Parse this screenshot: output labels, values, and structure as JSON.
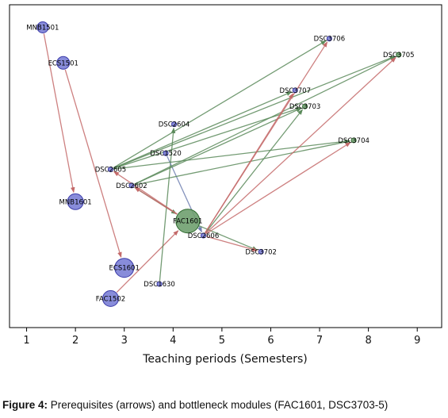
{
  "chart_data": {
    "type": "scatter",
    "xlabel": "Teaching periods (Semesters)",
    "xlim": [
      0.65,
      9.5
    ],
    "ylim": [
      0,
      10
    ],
    "xticks": [
      1,
      2,
      3,
      4,
      5,
      6,
      7,
      8,
      9
    ],
    "grid": false,
    "nodes": [
      {
        "id": "MNB1501",
        "x": 1.33,
        "y": 9.3,
        "size": 7,
        "group": "blue"
      },
      {
        "id": "ECS1501",
        "x": 1.75,
        "y": 8.2,
        "size": 8,
        "group": "blue"
      },
      {
        "id": "MNB1601",
        "x": 2.0,
        "y": 3.9,
        "size": 10,
        "group": "blue"
      },
      {
        "id": "ECS1601",
        "x": 3.0,
        "y": 1.85,
        "size": 12,
        "group": "blue"
      },
      {
        "id": "FAC1502",
        "x": 2.72,
        "y": 0.9,
        "size": 10,
        "group": "blue"
      },
      {
        "id": "FAC1601",
        "x": 4.3,
        "y": 3.3,
        "size": 15,
        "group": "green"
      },
      {
        "id": "DSC1520",
        "x": 3.85,
        "y": 5.4,
        "size": 3,
        "group": "blue"
      },
      {
        "id": "DSC1630",
        "x": 3.72,
        "y": 1.35,
        "size": 3,
        "group": "blue"
      },
      {
        "id": "DSC2602",
        "x": 3.15,
        "y": 4.4,
        "size": 3,
        "group": "blue"
      },
      {
        "id": "DSC2604",
        "x": 4.02,
        "y": 6.3,
        "size": 3,
        "group": "blue"
      },
      {
        "id": "DSC2605",
        "x": 2.72,
        "y": 4.9,
        "size": 3,
        "group": "blue"
      },
      {
        "id": "DSC2606",
        "x": 4.62,
        "y": 2.85,
        "size": 3,
        "group": "blue"
      },
      {
        "id": "DSC3702",
        "x": 5.8,
        "y": 2.35,
        "size": 3,
        "group": "blue"
      },
      {
        "id": "DSC3703",
        "x": 6.7,
        "y": 6.85,
        "size": 3,
        "group": "green"
      },
      {
        "id": "DSC3704",
        "x": 7.7,
        "y": 5.8,
        "size": 3,
        "group": "green"
      },
      {
        "id": "DSC3705",
        "x": 8.62,
        "y": 8.45,
        "size": 3,
        "group": "green"
      },
      {
        "id": "DSC3706",
        "x": 7.2,
        "y": 8.95,
        "size": 3,
        "group": "blue"
      },
      {
        "id": "DSC3707",
        "x": 6.5,
        "y": 7.35,
        "size": 3,
        "group": "blue"
      }
    ],
    "edges": [
      {
        "from": "MNB1501",
        "to": "MNB1601",
        "color": "red"
      },
      {
        "from": "ECS1501",
        "to": "ECS1601",
        "color": "red"
      },
      {
        "from": "FAC1502",
        "to": "FAC1601",
        "color": "red"
      },
      {
        "from": "DSC1630",
        "to": "DSC2604",
        "color": "green"
      },
      {
        "from": "DSC1520",
        "to": "DSC2606",
        "color": "blue"
      },
      {
        "from": "DSC2605",
        "to": "DSC3706",
        "color": "green"
      },
      {
        "from": "DSC2605",
        "to": "DSC3705",
        "color": "green"
      },
      {
        "from": "DSC2605",
        "to": "DSC3707",
        "color": "green"
      },
      {
        "from": "DSC2605",
        "to": "DSC3703",
        "color": "green"
      },
      {
        "from": "DSC2605",
        "to": "DSC3704",
        "color": "green"
      },
      {
        "from": "DSC2602",
        "to": "DSC3703",
        "color": "green"
      },
      {
        "from": "DSC2602",
        "to": "DSC3704",
        "color": "green"
      },
      {
        "from": "DSC2602",
        "to": "DSC3705",
        "color": "green"
      },
      {
        "from": "DSC2602",
        "to": "FAC1601",
        "color": "green"
      },
      {
        "from": "FAC1601",
        "to": "DSC2602",
        "color": "red"
      },
      {
        "from": "FAC1601",
        "to": "DSC2605",
        "color": "red"
      },
      {
        "from": "FAC1601",
        "to": "DSC3702",
        "color": "green"
      },
      {
        "from": "DSC2606",
        "to": "DSC3702",
        "color": "red"
      },
      {
        "from": "DSC2606",
        "to": "DSC3703",
        "color": "green"
      },
      {
        "from": "DSC2606",
        "to": "DSC3706",
        "color": "red"
      },
      {
        "from": "DSC2606",
        "to": "DSC3707",
        "color": "red"
      },
      {
        "from": "DSC2606",
        "to": "DSC3704",
        "color": "red"
      },
      {
        "from": "DSC2606",
        "to": "DSC3705",
        "color": "red"
      }
    ],
    "colors": {
      "blue_fill": "#7b7fd6",
      "blue_stroke": "#3a3aa8",
      "green_fill": "#6fa06f",
      "green_stroke": "#2e6a2e",
      "edge_red": "#c46a6a",
      "edge_green": "#5a8a5a",
      "edge_blue": "#6f7fb0"
    }
  },
  "caption": {
    "bold": "Figure 4:",
    "text": " Prerequisites (arrows) and bottleneck modules (FAC1601, DSC3703-5)"
  }
}
